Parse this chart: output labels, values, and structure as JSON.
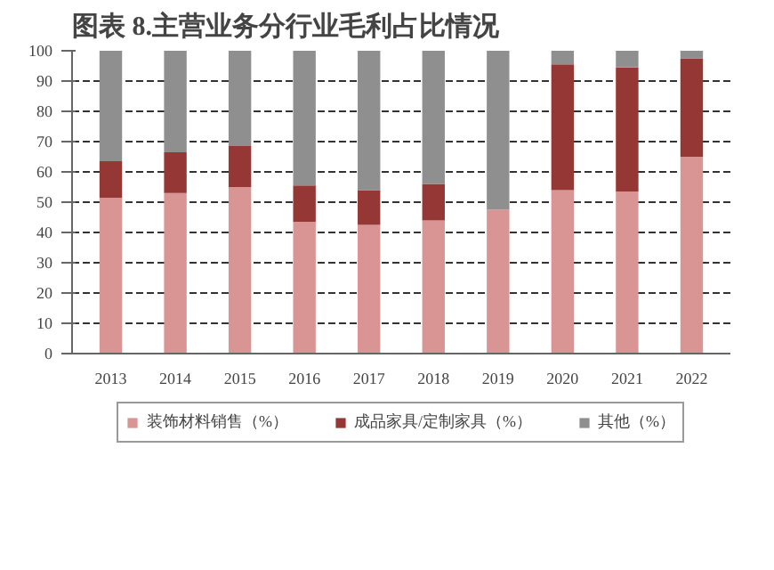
{
  "chart_data": {
    "type": "bar",
    "title": "图表 8.主营业务分行业毛利占比情况",
    "stacked": true,
    "categories": [
      "2013",
      "2014",
      "2015",
      "2016",
      "2017",
      "2018",
      "2019",
      "2020",
      "2021",
      "2022"
    ],
    "series": [
      {
        "name": "装饰材料销售（%）",
        "color": "#d99594",
        "values": [
          51.5,
          53,
          55,
          43.5,
          42.5,
          44,
          47.5,
          54,
          53.5,
          65
        ]
      },
      {
        "name": "成品家具/定制家具（%）",
        "color": "#953735",
        "values": [
          12,
          13.5,
          13.5,
          12,
          11.5,
          12,
          0,
          41.5,
          41,
          32.5
        ]
      },
      {
        "name": "其他（%）",
        "color": "#8f8f8f",
        "values": [
          36.5,
          33.5,
          31.5,
          44.5,
          46,
          44,
          52.5,
          4.5,
          5.5,
          2.5
        ]
      }
    ],
    "ylim": [
      0,
      100
    ],
    "yticks": [
      0,
      10,
      20,
      30,
      40,
      50,
      60,
      70,
      80,
      90,
      100
    ],
    "grid": "y",
    "legend": "bottom"
  }
}
